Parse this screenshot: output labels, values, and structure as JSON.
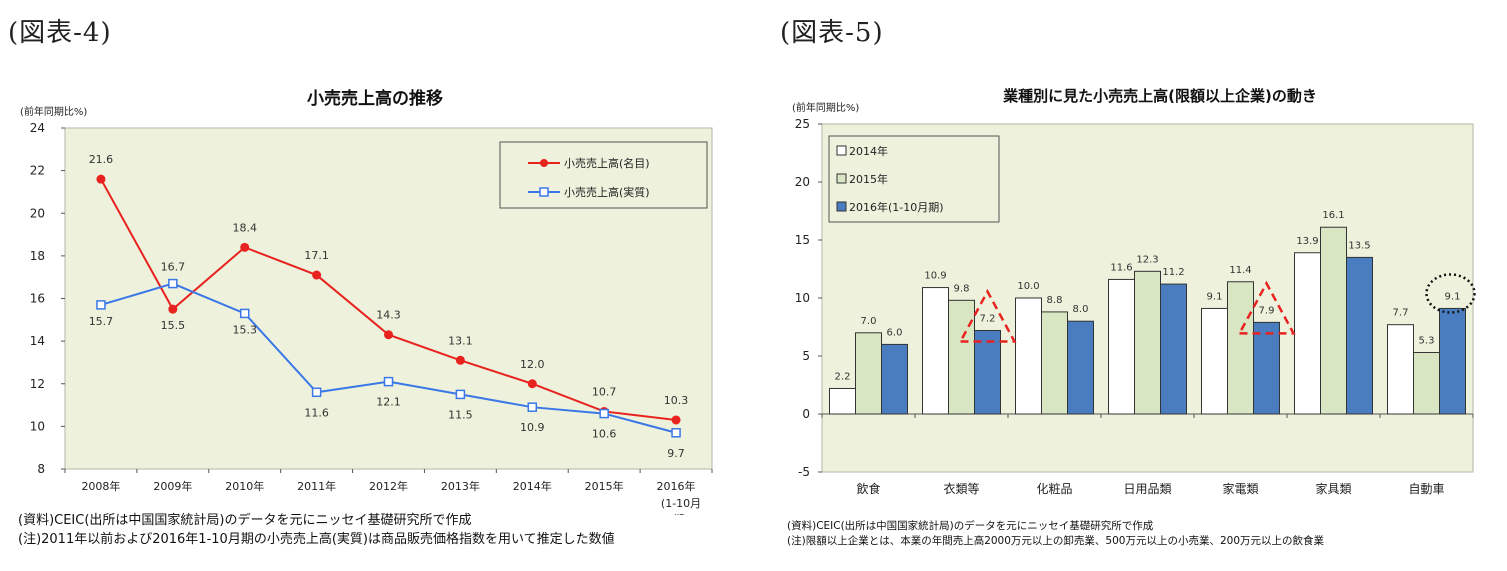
{
  "figure_left": {
    "label": "(図表-4)",
    "notes": [
      "(資料)CEIC(出所は中国国家統計局)のデータを元にニッセイ基礎研究所で作成",
      "(注)2011年以前および2016年1-10月期の小売売上高(実質)は商品販売価格指数を用いて推定した数値"
    ]
  },
  "figure_right": {
    "label": "(図表-5)",
    "notes": [
      "(資料)CEIC(出所は中国国家統計局)のデータを元にニッセイ基礎研究所で作成",
      "(注)限額以上企業とは、本業の年間売上高2000万元以上の卸売業、500万元以上の小売業、200万元以上の飲食業"
    ]
  },
  "chart_data": [
    {
      "type": "line",
      "title": "小売売上高の推移",
      "ylabel": "(前年同期比%)",
      "ylim": [
        8,
        24
      ],
      "yticks": [
        "8",
        "10",
        "12",
        "14",
        "16",
        "18",
        "20",
        "22",
        "24"
      ],
      "categories": [
        "2008年",
        "2009年",
        "2010年",
        "2011年",
        "2012年",
        "2013年",
        "2014年",
        "2015年",
        "2016年"
      ],
      "category_sublabel": [
        "(1-10月",
        "期)"
      ],
      "legend_position": "top-right",
      "grid": false,
      "series": [
        {
          "name": "小売売上高(名目)",
          "color": "#e8231f",
          "marker": "circle",
          "values": [
            21.6,
            15.5,
            18.4,
            17.1,
            14.3,
            13.1,
            12.0,
            10.7,
            10.3
          ],
          "labels": [
            "21.6",
            "15.5",
            "18.4",
            "17.1",
            "14.3",
            "13.1",
            "12.0",
            "10.7",
            "10.3"
          ]
        },
        {
          "name": "小売売上高(実質)",
          "color": "#3a78e8",
          "marker": "square",
          "values": [
            15.7,
            16.7,
            15.3,
            11.6,
            12.1,
            11.5,
            10.9,
            10.6,
            9.7
          ],
          "labels": [
            "15.7",
            "16.7",
            "15.3",
            "11.6",
            "12.1",
            "11.5",
            "10.9",
            "10.6",
            "9.7"
          ]
        }
      ],
      "plot_background": "#eef1dc"
    },
    {
      "type": "bar",
      "title": "業種別に見た小売売上高(限額以上企業)の動き",
      "ylabel": "(前年同期比%)",
      "ylim": [
        -5,
        25
      ],
      "yticks": [
        "-5",
        "0",
        "5",
        "10",
        "15",
        "20",
        "25"
      ],
      "categories": [
        "飲食",
        "衣類等",
        "化粧品",
        "日用品類",
        "家電類",
        "家具類",
        "自動車"
      ],
      "legend_position": "top-left",
      "grid": false,
      "series": [
        {
          "name": "2014年",
          "color": "#ffffff",
          "values": [
            2.2,
            10.9,
            10.0,
            11.6,
            9.1,
            13.9,
            7.7
          ],
          "labels": [
            "2.2",
            "10.9",
            "10.0",
            "11.6",
            "9.1",
            "13.9",
            "7.7"
          ]
        },
        {
          "name": "2015年",
          "color": "#d9e6c3",
          "values": [
            7.0,
            9.8,
            8.8,
            12.3,
            11.4,
            16.1,
            5.3
          ],
          "labels": [
            "7.0",
            "9.8",
            "8.8",
            "12.3",
            "11.4",
            "16.1",
            "5.3"
          ]
        },
        {
          "name": "2016年(1-10月期)",
          "color": "#4a7dbf",
          "values": [
            6.0,
            7.2,
            8.0,
            11.2,
            7.9,
            13.5,
            9.1
          ],
          "labels": [
            "6.0",
            "7.2",
            "8.0",
            "11.2",
            "7.9",
            "13.5",
            "9.1"
          ]
        }
      ],
      "annotations": [
        {
          "type": "triangle",
          "category": "衣類等",
          "series": "2016年(1-10月期)",
          "color": "#e8231f"
        },
        {
          "type": "triangle",
          "category": "家電類",
          "series": "2016年(1-10月期)",
          "color": "#e8231f"
        },
        {
          "type": "ellipse",
          "category": "自動車",
          "series": "2016年(1-10月期)",
          "color": "#111111"
        }
      ],
      "plot_background": "#eef1dc"
    }
  ]
}
